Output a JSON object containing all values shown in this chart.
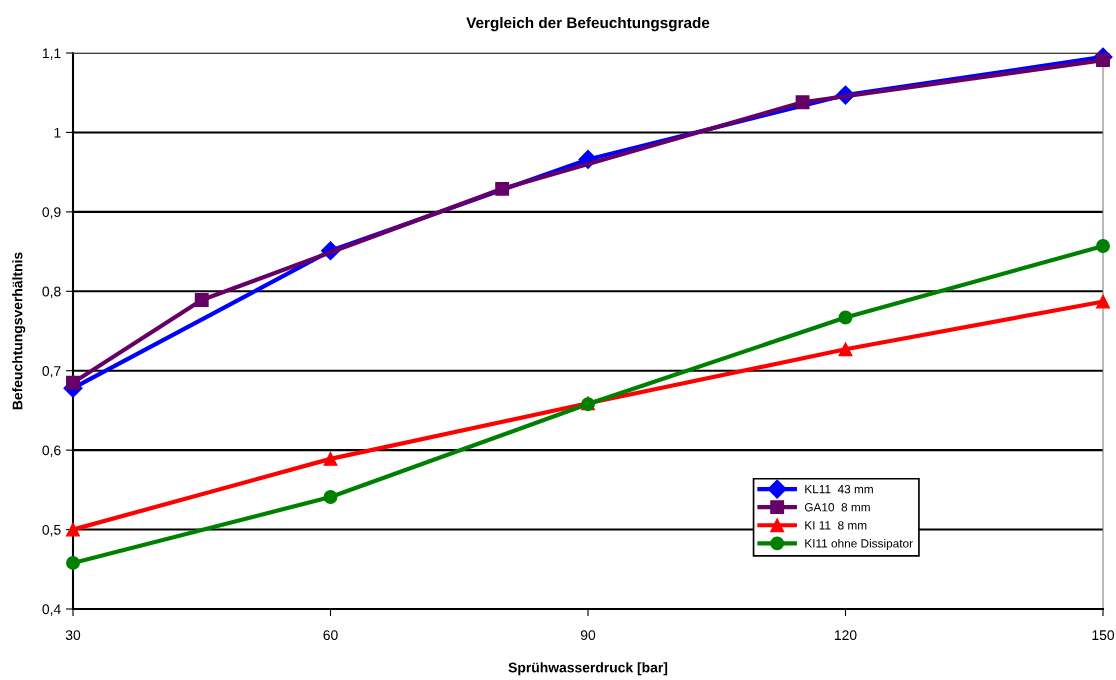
{
  "chart_data": {
    "type": "line",
    "title": "Vergleich der Befeuchtungsgrade",
    "xlabel": "Sprühwasserdruck [bar]",
    "ylabel": "Befeuchtungsverhältnis",
    "x": [
      30,
      60,
      90,
      120,
      150
    ],
    "series": [
      {
        "name": "KL11  43 mm",
        "color": "#0000ff",
        "marker": "diamond",
        "values": [
          0.678,
          0.851,
          0.966,
          1.047,
          1.095
        ]
      },
      {
        "name": "GA10  8 mm",
        "color": "#660066",
        "marker": "square",
        "x": [
          30,
          45,
          80,
          115,
          150
        ],
        "values": [
          0.685,
          0.789,
          0.929,
          1.038,
          1.091
        ]
      },
      {
        "name": "KI 11  8 mm",
        "color": "#ff0000",
        "marker": "triangle",
        "values": [
          0.5,
          0.589,
          0.659,
          0.727,
          0.787
        ]
      },
      {
        "name": "KI11 ohne Dissipator",
        "color": "#008000",
        "marker": "circle",
        "values": [
          0.458,
          0.541,
          0.658,
          0.767,
          0.857
        ]
      }
    ],
    "xlim": [
      30,
      150
    ],
    "xticks": [
      30,
      60,
      90,
      120,
      150
    ],
    "ylim": [
      0.4,
      1.1
    ],
    "yticks": [
      {
        "value": 0.4,
        "label": "0,4"
      },
      {
        "value": 0.5,
        "label": "0,5"
      },
      {
        "value": 0.6,
        "label": "0,6"
      },
      {
        "value": 0.7,
        "label": "0,7"
      },
      {
        "value": 0.8,
        "label": "0,8"
      },
      {
        "value": 0.9,
        "label": "0,9"
      },
      {
        "value": 1.0,
        "label": "1"
      },
      {
        "value": 1.1,
        "label": "1,1"
      }
    ],
    "grid": "y",
    "legend": "bottom right",
    "line_style": "solid"
  }
}
